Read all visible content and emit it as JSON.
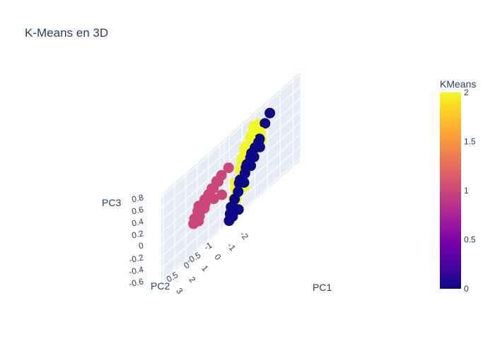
{
  "chart_data": {
    "type": "scatter",
    "title": "K-Means en 3D",
    "axes": {
      "x": {
        "title": "PC1",
        "ticks": [
          "3",
          "2",
          "1",
          "0",
          "-1",
          "-2"
        ]
      },
      "y": {
        "title": "PC2",
        "ticks": [
          "-1",
          "-0.5",
          "0",
          "0.5"
        ]
      },
      "z": {
        "title": "PC3",
        "ticks": [
          "0.8",
          "0.6",
          "0.4",
          "0.2",
          "0",
          "-0.2",
          "-0.4",
          "-0.6"
        ]
      }
    },
    "colorbar": {
      "title": "KMeans",
      "ticks": [
        "2",
        "1.5",
        "1",
        "0.5",
        "0"
      ],
      "range": [
        0,
        2
      ],
      "colorscale": [
        "#0d0887",
        "#46039f",
        "#7201a8",
        "#9c179e",
        "#bd3786",
        "#d8576b",
        "#ed7953",
        "#fb9f3a",
        "#fdca26",
        "#f0f921"
      ]
    },
    "cluster_colors": {
      "0": "#0d0887",
      "1": "#cc4778",
      "2": "#f0f921"
    },
    "series": [
      {
        "cluster": 2,
        "points": [
          [
            -1.2,
            0.1,
            0.62
          ],
          [
            -1.1,
            -0.2,
            0.58
          ],
          [
            -1.0,
            -0.1,
            0.52
          ],
          [
            -1.2,
            0.2,
            0.5
          ],
          [
            -1.3,
            0.3,
            0.48
          ],
          [
            -1.0,
            0.0,
            0.45
          ],
          [
            -1.4,
            -0.1,
            0.42
          ],
          [
            -1.1,
            0.4,
            0.4
          ],
          [
            -1.2,
            0.5,
            0.36
          ],
          [
            -1.0,
            0.3,
            0.33
          ],
          [
            -1.3,
            0.1,
            0.3
          ],
          [
            -1.1,
            -0.3,
            0.28
          ],
          [
            -1.2,
            0.6,
            0.25
          ],
          [
            -1.5,
            0.2,
            0.22
          ],
          [
            -1.0,
            0.5,
            0.2
          ],
          [
            -1.3,
            0.4,
            0.15
          ],
          [
            -1.2,
            0.7,
            0.1
          ],
          [
            -1.1,
            0.6,
            0.05
          ],
          [
            -1.4,
            0.5,
            0.0
          ],
          [
            -1.0,
            0.8,
            -0.05
          ],
          [
            -1.3,
            0.7,
            -0.1
          ],
          [
            -1.2,
            0.9,
            -0.15
          ],
          [
            -1.1,
            0.8,
            -0.2
          ],
          [
            -1.4,
            0.6,
            -0.25
          ],
          [
            -1.2,
            1.0,
            -0.3
          ],
          [
            -1.3,
            0.9,
            -0.35
          ]
        ]
      },
      {
        "cluster": 0,
        "points": [
          [
            -1.6,
            -0.4,
            0.6
          ],
          [
            -1.4,
            -0.3,
            0.5
          ],
          [
            -1.5,
            0.0,
            0.32
          ],
          [
            -1.6,
            0.1,
            0.28
          ],
          [
            -1.5,
            0.2,
            0.24
          ],
          [
            -1.4,
            0.3,
            0.2
          ],
          [
            -1.7,
            0.1,
            0.18
          ],
          [
            -1.5,
            0.4,
            0.14
          ],
          [
            -1.6,
            0.3,
            0.1
          ],
          [
            -1.4,
            0.5,
            0.08
          ],
          [
            -1.5,
            0.6,
            0.04
          ],
          [
            -1.7,
            0.5,
            0.0
          ],
          [
            -1.6,
            0.7,
            -0.04
          ],
          [
            -1.4,
            0.8,
            -0.08
          ],
          [
            -1.5,
            0.9,
            -0.12
          ],
          [
            -1.7,
            0.8,
            -0.18
          ],
          [
            -1.6,
            1.0,
            -0.25
          ],
          [
            -1.5,
            1.1,
            -0.32
          ],
          [
            -1.4,
            1.2,
            -0.4
          ],
          [
            -1.6,
            1.2,
            -0.45
          ],
          [
            -1.5,
            1.3,
            -0.5
          ],
          [
            -1.8,
            1.1,
            -0.55
          ],
          [
            -1.7,
            1.3,
            -0.58
          ],
          [
            -1.6,
            1.4,
            -0.6
          ]
        ]
      },
      {
        "cluster": 1,
        "points": [
          [
            2.0,
            -0.6,
            0.3
          ],
          [
            2.2,
            -0.4,
            0.28
          ],
          [
            2.4,
            -0.3,
            0.25
          ],
          [
            2.1,
            -0.2,
            0.22
          ],
          [
            2.6,
            -0.2,
            0.2
          ],
          [
            2.3,
            -0.1,
            0.18
          ],
          [
            2.5,
            0.0,
            0.15
          ],
          [
            2.8,
            0.0,
            0.12
          ],
          [
            2.2,
            0.1,
            0.1
          ],
          [
            2.7,
            0.1,
            0.08
          ],
          [
            2.4,
            0.2,
            0.05
          ],
          [
            3.0,
            0.2,
            0.03
          ],
          [
            2.6,
            0.3,
            0.0
          ],
          [
            2.3,
            0.3,
            -0.02
          ],
          [
            2.9,
            0.4,
            -0.05
          ],
          [
            2.5,
            0.4,
            -0.08
          ],
          [
            2.1,
            0.0,
            0.0
          ],
          [
            3.1,
            0.1,
            0.1
          ],
          [
            2.8,
            0.5,
            -0.12
          ],
          [
            2.4,
            0.5,
            -0.15
          ],
          [
            3.2,
            -0.1,
            0.05
          ],
          [
            2.0,
            -0.3,
            -0.05
          ]
        ]
      }
    ]
  }
}
